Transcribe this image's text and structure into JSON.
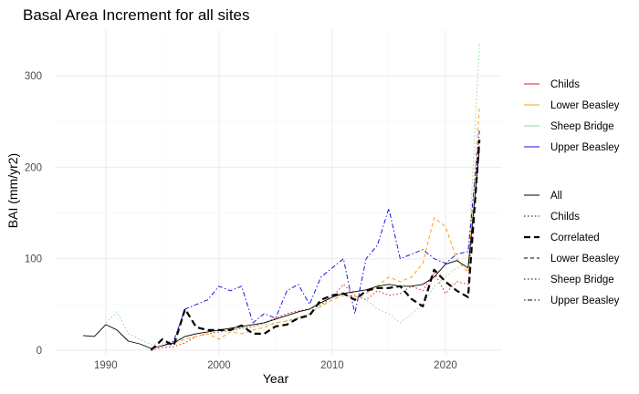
{
  "chart_data": {
    "type": "line",
    "title": "Basal Area Increment for all sites",
    "xlabel": "Year",
    "ylabel": "BAI (mm/yr2)",
    "xlim": [
      1985.5,
      2025
    ],
    "ylim": [
      -5,
      350
    ],
    "xticks": [
      1990,
      2000,
      2010,
      2020
    ],
    "yticks": [
      0,
      100,
      200,
      300
    ],
    "grid": true,
    "legend_position": "right",
    "colour_legend": [
      {
        "name": "Childs",
        "color": "#e41a1c"
      },
      {
        "name": "Lower Beasley",
        "color": "#ff9f1a"
      },
      {
        "name": "Sheep Bridge",
        "color": "#8fd98f"
      },
      {
        "name": "Upper Beasley",
        "color": "#1515e6"
      }
    ],
    "linetype_legend": [
      {
        "name": "All",
        "dash": "solid"
      },
      {
        "name": "Childs",
        "dash": "dotted"
      },
      {
        "name": "Correlated",
        "dash": "dashed-bold"
      },
      {
        "name": "Lower Beasley",
        "dash": "dashed"
      },
      {
        "name": "Sheep Bridge",
        "dash": "dotted"
      },
      {
        "name": "Upper Beasley",
        "dash": "dotdash"
      }
    ],
    "series": [
      {
        "name": "Childs",
        "color": "#e41a1c",
        "dash": "dotted",
        "x": [
          1994,
          1995,
          1996,
          1997,
          1998,
          1999,
          2000,
          2001,
          2002,
          2003,
          2004,
          2005,
          2006,
          2007,
          2008,
          2009,
          2010,
          2011,
          2012,
          2013,
          2014,
          2015,
          2016,
          2017,
          2018,
          2019,
          2020,
          2021,
          2022,
          2023
        ],
        "y": [
          0,
          3,
          4,
          8,
          15,
          18,
          20,
          22,
          24,
          26,
          30,
          35,
          40,
          43,
          45,
          50,
          58,
          72,
          60,
          55,
          65,
          60,
          62,
          70,
          65,
          85,
          62,
          75,
          72,
          228
        ]
      },
      {
        "name": "Lower Beasley",
        "color": "#ff9f1a",
        "dash": "dashed",
        "x": [
          1995,
          1996,
          1997,
          1998,
          1999,
          2000,
          2001,
          2002,
          2003,
          2004,
          2005,
          2006,
          2007,
          2008,
          2009,
          2010,
          2011,
          2012,
          2013,
          2014,
          2015,
          2016,
          2017,
          2018,
          2019,
          2020,
          2021,
          2022,
          2023
        ],
        "y": [
          5,
          8,
          12,
          15,
          18,
          12,
          20,
          18,
          22,
          25,
          30,
          32,
          35,
          40,
          48,
          55,
          60,
          58,
          62,
          70,
          80,
          75,
          80,
          95,
          145,
          135,
          100,
          85,
          265
        ]
      },
      {
        "name": "Sheep Bridge",
        "color": "#8fd98f",
        "dash": "dotted",
        "x": [
          1990,
          1991,
          1992,
          1993,
          1994,
          1995,
          1996,
          1997,
          1998,
          1999,
          2000,
          2001,
          2002,
          2003,
          2004,
          2005,
          2006,
          2007,
          2008,
          2009,
          2010,
          2011,
          2012,
          2013,
          2014,
          2015,
          2016,
          2017,
          2018,
          2019,
          2020,
          2021,
          2022,
          2023
        ],
        "y": [
          30,
          42,
          18,
          12,
          6,
          8,
          10,
          15,
          18,
          20,
          22,
          20,
          24,
          26,
          28,
          30,
          32,
          36,
          40,
          48,
          58,
          62,
          65,
          55,
          45,
          40,
          30,
          40,
          50,
          70,
          80,
          90,
          95,
          335
        ]
      },
      {
        "name": "Upper Beasley",
        "color": "#1515e6",
        "dash": "dotdash",
        "x": [
          1995,
          1996,
          1997,
          1998,
          1999,
          2000,
          2001,
          2002,
          2003,
          2004,
          2005,
          2006,
          2007,
          2008,
          2009,
          2010,
          2011,
          2012,
          2013,
          2014,
          2015,
          2016,
          2017,
          2018,
          2019,
          2020,
          2021,
          2022,
          2023
        ],
        "y": [
          5,
          10,
          45,
          50,
          55,
          70,
          65,
          70,
          30,
          40,
          35,
          65,
          72,
          50,
          80,
          90,
          100,
          40,
          100,
          115,
          155,
          100,
          105,
          110,
          100,
          95,
          105,
          108,
          240
        ]
      },
      {
        "name": "All",
        "color": "#000000",
        "dash": "solid",
        "x": [
          1988,
          1989,
          1990,
          1991,
          1992,
          1993,
          1994,
          1995,
          1996,
          1997,
          1998,
          1999,
          2000,
          2001,
          2002,
          2003,
          2004,
          2005,
          2006,
          2007,
          2008,
          2009,
          2010,
          2011,
          2012,
          2013,
          2014,
          2015,
          2016,
          2017,
          2018,
          2019,
          2020,
          2021,
          2022,
          2023
        ],
        "y": [
          16,
          15,
          28,
          22,
          10,
          7,
          2,
          5,
          8,
          15,
          18,
          20,
          22,
          24,
          26,
          28,
          30,
          34,
          38,
          42,
          45,
          52,
          58,
          62,
          64,
          66,
          70,
          72,
          70,
          70,
          72,
          80,
          94,
          98,
          90,
          220
        ]
      },
      {
        "name": "Correlated",
        "color": "#000000",
        "dash": "dashed-bold",
        "x": [
          1994,
          1995,
          1996,
          1997,
          1998,
          1999,
          2000,
          2001,
          2002,
          2003,
          2004,
          2005,
          2006,
          2007,
          2008,
          2009,
          2010,
          2011,
          2012,
          2013,
          2014,
          2015,
          2016,
          2017,
          2018,
          2019,
          2020,
          2021,
          2022,
          2023
        ],
        "y": [
          0,
          12,
          5,
          45,
          25,
          22,
          22,
          22,
          27,
          18,
          18,
          26,
          28,
          35,
          38,
          55,
          60,
          62,
          55,
          65,
          68,
          68,
          70,
          56,
          48,
          88,
          75,
          65,
          58,
          230
        ]
      }
    ]
  }
}
